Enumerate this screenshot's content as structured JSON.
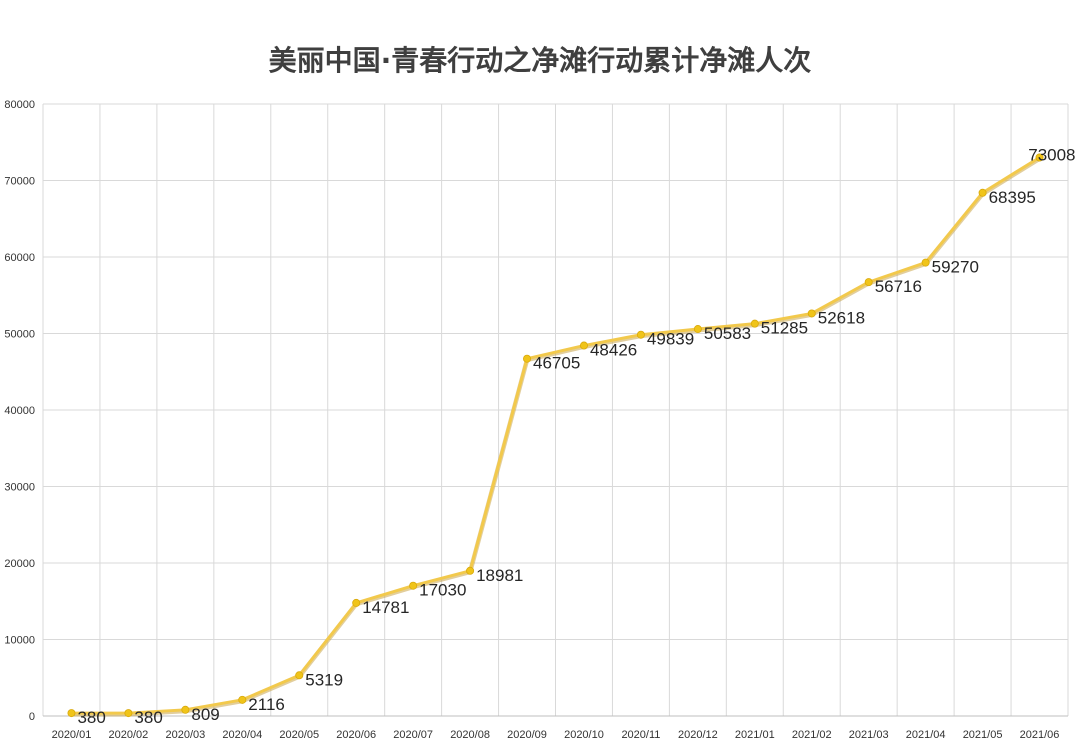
{
  "chart_data": {
    "type": "line",
    "title": "美丽中国·青春行动之净滩行动累计净滩人次",
    "xlabel": "",
    "ylabel": "",
    "categories": [
      "2020/01",
      "2020/02",
      "2020/03",
      "2020/04",
      "2020/05",
      "2020/06",
      "2020/07",
      "2020/08",
      "2020/09",
      "2020/10",
      "2020/11",
      "2020/12",
      "2021/01",
      "2021/02",
      "2021/03",
      "2021/04",
      "2021/05",
      "2021/06"
    ],
    "series": [
      {
        "values": [
          380,
          380,
          809,
          2116,
          5319,
          14781,
          17030,
          18981,
          46705,
          48426,
          49839,
          50583,
          51285,
          52618,
          56716,
          59270,
          68395,
          73008
        ]
      }
    ],
    "ylim": [
      0,
      80000
    ],
    "yticks": [
      0,
      10000,
      20000,
      30000,
      40000,
      50000,
      60000,
      70000,
      80000
    ],
    "grid": true,
    "legend": "none",
    "colors": {
      "line": "#f2c94c",
      "line_shadow": "#caa64a",
      "marker": "#f0c419",
      "grid": "#d9d9d9",
      "axis": "#bfbfbf"
    }
  }
}
